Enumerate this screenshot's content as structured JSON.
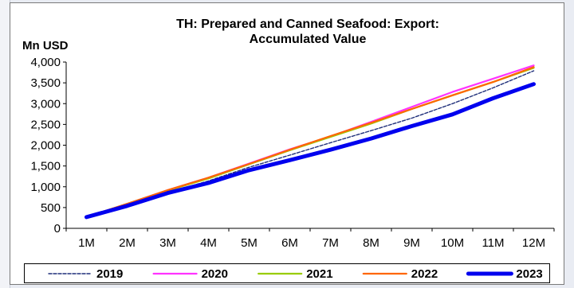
{
  "chart_data": {
    "type": "line",
    "title_line1": "TH: Prepared and Canned Seafood: Export:",
    "title_line2": "Accumulated Value",
    "ylabel": "Mn USD",
    "categories": [
      "1M",
      "2M",
      "3M",
      "4M",
      "5M",
      "6M",
      "7M",
      "8M",
      "9M",
      "10M",
      "11M",
      "12M"
    ],
    "ylim": [
      0,
      4000
    ],
    "yticks": [
      0,
      500,
      1000,
      1500,
      2000,
      2500,
      3000,
      3500,
      4000
    ],
    "ytick_labels": [
      "0",
      "500",
      "1,000",
      "1,500",
      "2,000",
      "2,500",
      "3,000",
      "3,500",
      "4,000"
    ],
    "legend_position": "bottom",
    "series": [
      {
        "name": "2019",
        "color": "#1f2f7a",
        "style": "dashed",
        "values": [
          270,
          560,
          860,
          1140,
          1470,
          1760,
          2060,
          2350,
          2650,
          3000,
          3380,
          3790
        ]
      },
      {
        "name": "2020",
        "color": "#ff33ff",
        "style": "solid",
        "values": [
          270,
          590,
          920,
          1220,
          1560,
          1900,
          2210,
          2560,
          2920,
          3280,
          3600,
          3920
        ]
      },
      {
        "name": "2021",
        "color": "#99cc00",
        "style": "solid",
        "values": [
          270,
          590,
          910,
          1200,
          1540,
          1880,
          2200,
          2520,
          2870,
          3200,
          3520,
          3860
        ]
      },
      {
        "name": "2022",
        "color": "#ff6600",
        "style": "solid",
        "values": [
          270,
          590,
          920,
          1220,
          1550,
          1890,
          2220,
          2540,
          2870,
          3200,
          3520,
          3880
        ]
      },
      {
        "name": "2023",
        "color": "#0000ee",
        "style": "thick",
        "values": [
          270,
          540,
          850,
          1090,
          1400,
          1640,
          1890,
          2160,
          2460,
          2740,
          3130,
          3470
        ]
      }
    ]
  }
}
